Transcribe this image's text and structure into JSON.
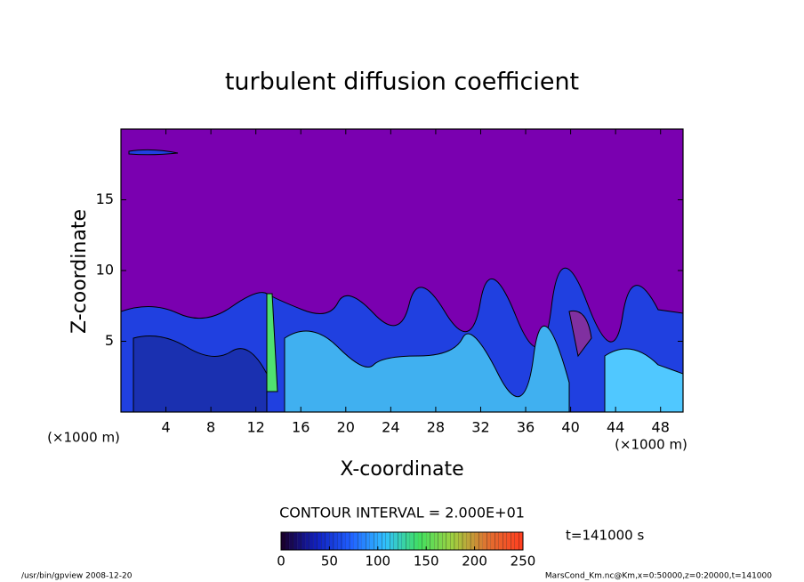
{
  "chart_data": {
    "type": "contour",
    "title": "turbulent diffusion coefficient",
    "x_label": "X-coordinate",
    "y_label": "Z-coordinate",
    "x_unit": "(×1000 m)",
    "y_unit": "(×1000 m)",
    "xlim": [
      0,
      50
    ],
    "xticks": [
      4,
      8,
      12,
      16,
      20,
      24,
      28,
      32,
      36,
      40,
      44,
      48
    ],
    "ylim": [
      0,
      20
    ],
    "yticks": [
      5,
      10,
      15
    ],
    "contour_interval": "CONTOUR INTERVAL = 2.000E+01",
    "clim": [
      0,
      250
    ],
    "cticks": [
      0,
      50,
      100,
      150,
      200,
      250
    ],
    "colormap": [
      "#1a0030",
      "#1020c0",
      "#2060ff",
      "#30c0ff",
      "#40e060",
      "#a0d040",
      "#e07030",
      "#ff4020"
    ],
    "time_label": "t=141000 s",
    "footer_left": "/usr/bin/gpview  2008-12-20",
    "footer_right": "MarsCond_Km.nc@Km,x=0:50000,z=0:20000,t=141000"
  }
}
